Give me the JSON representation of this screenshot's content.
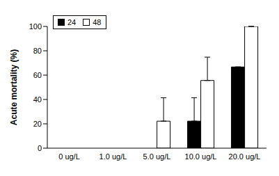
{
  "chart_data": {
    "type": "bar",
    "y_label": "Acute mortality (%)",
    "categories": [
      "0 ug/L",
      "1.0 ug/L",
      "5.0 ug/L",
      "10.0 ug/L",
      "20.0 ug/L"
    ],
    "series": [
      {
        "name": "24",
        "color": "#000000",
        "values": [
          0,
          0,
          0,
          22.2,
          66.7
        ],
        "errors": [
          0,
          0,
          0,
          19.2,
          0
        ]
      },
      {
        "name": "48",
        "color": "#ffffff",
        "values": [
          0,
          0,
          22.2,
          55.6,
          100
        ],
        "errors": [
          0,
          0,
          19.2,
          19.2,
          0
        ]
      }
    ],
    "ylim": [
      0,
      100
    ],
    "yticks": [
      0,
      20,
      40,
      60,
      80,
      100
    ],
    "grid": false,
    "legend": "upper left"
  }
}
